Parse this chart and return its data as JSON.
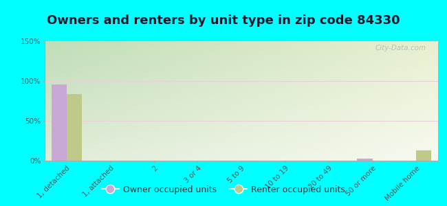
{
  "title": "Owners and renters by unit type in zip code 84330",
  "categories": [
    "1, detached",
    "1, attached",
    "2",
    "3 or 4",
    "5 to 9",
    "10 to 19",
    "20 to 49",
    "50 or more",
    "Mobile home"
  ],
  "owner_values": [
    96,
    0,
    0,
    0,
    0,
    0,
    0,
    3,
    0
  ],
  "renter_values": [
    84,
    0,
    0,
    0,
    0,
    0,
    0,
    0,
    13
  ],
  "owner_color": "#c9a8d4",
  "renter_color": "#bec98a",
  "background_color": "#00ffff",
  "grad_top_left": "#c8e6c0",
  "grad_bottom_right": "#f5f8ee",
  "ylim": [
    0,
    150
  ],
  "yticks": [
    0,
    50,
    100,
    150
  ],
  "ytick_labels": [
    "0%",
    "50%",
    "100%",
    "150%"
  ],
  "bar_width": 0.35,
  "legend_labels": [
    "Owner occupied units",
    "Renter occupied units"
  ],
  "watermark": "City-Data.com",
  "title_fontsize": 13,
  "tick_fontsize": 7.5,
  "legend_fontsize": 9
}
